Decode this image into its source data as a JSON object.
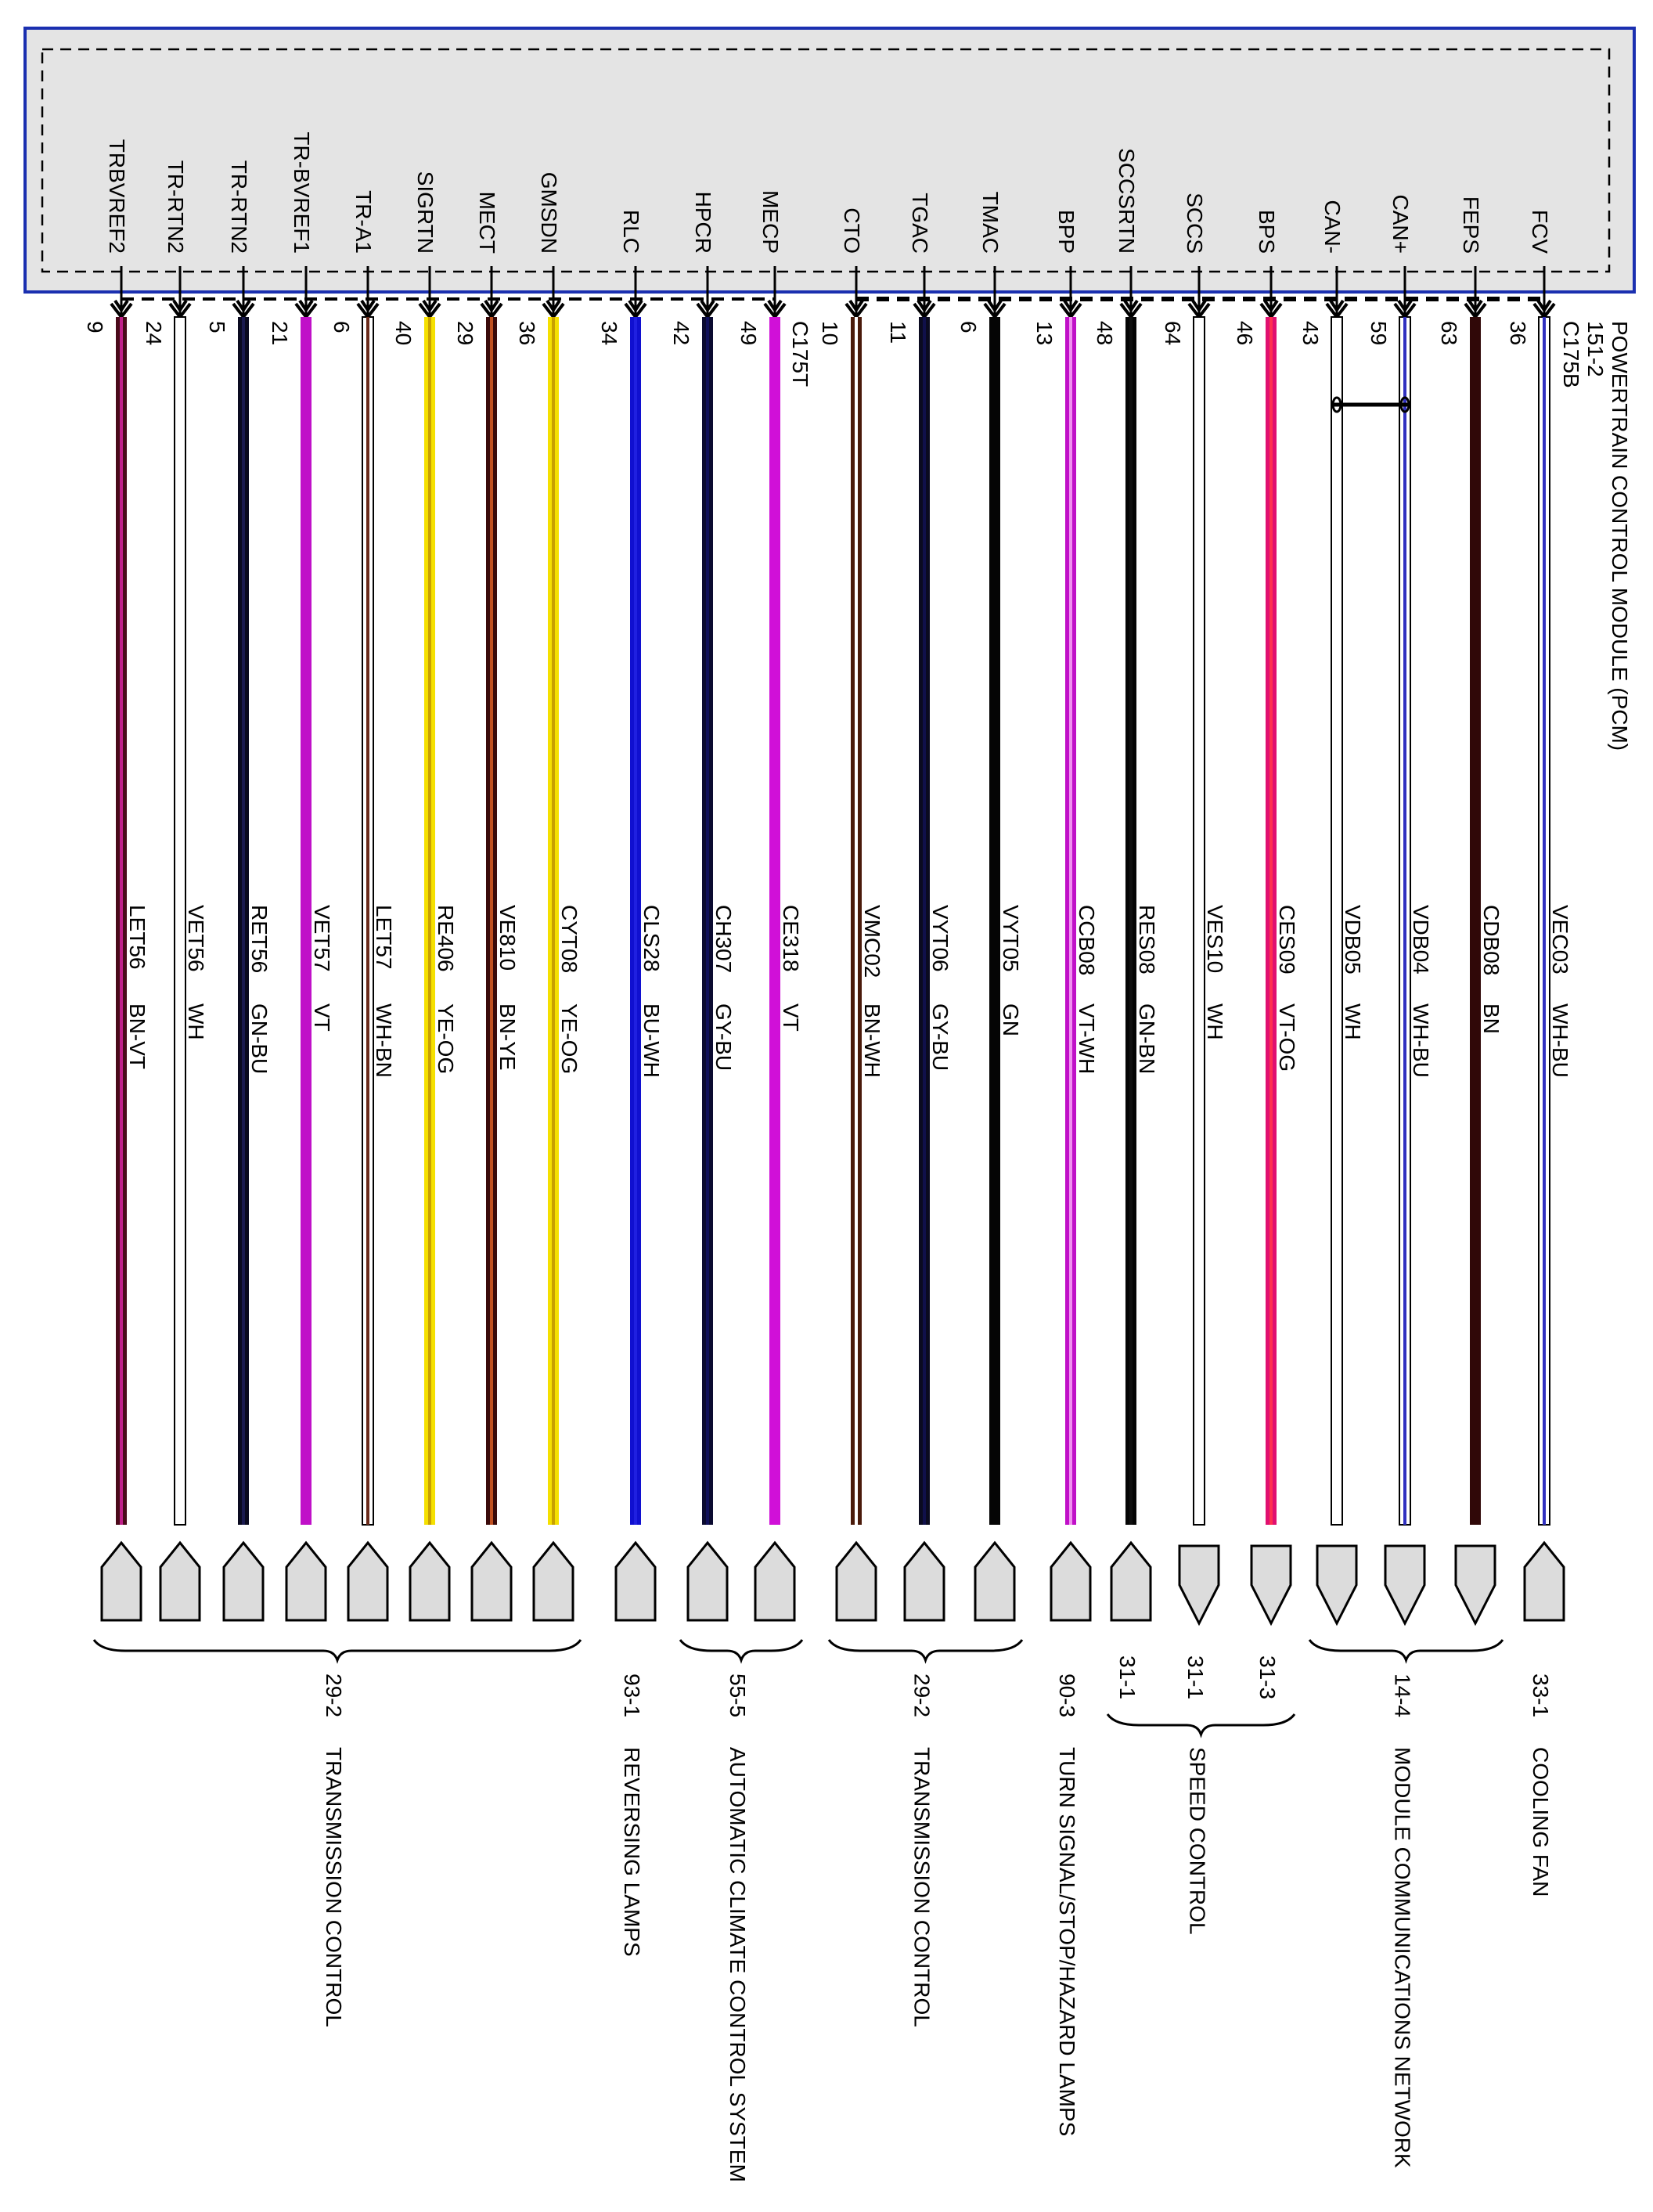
{
  "module": {
    "title": "POWERTRAIN CONTROL MODULE (PCM)",
    "ref": "151-2",
    "connector_right": "C175B",
    "connector_left": "C175T",
    "border_color": "#1a2fb0",
    "fill_color": "#e4e4e4"
  },
  "wires": [
    {
      "name": "TRBVREF2",
      "pin": "9",
      "circuit": "LET56",
      "color": "BN-VT",
      "base": "#4a0a1a",
      "stripe": "#c0208a",
      "group": "left",
      "conn": "up"
    },
    {
      "name": "TR-RTN2",
      "pin": "24",
      "circuit": "VET56",
      "color": "WH",
      "base": "#ffffff",
      "stripe": "#ffffff",
      "group": "left",
      "conn": "up"
    },
    {
      "name": "TR-RTN2",
      "pin": "5",
      "circuit": "RET56",
      "color": "GN-BU",
      "base": "#0a0a20",
      "stripe": "#1a1a50",
      "group": "left",
      "conn": "up"
    },
    {
      "name": "TR-BVREF1",
      "pin": "21",
      "circuit": "VET57",
      "color": "VT",
      "base": "#c010c8",
      "stripe": "#c010c8",
      "group": "left",
      "conn": "up"
    },
    {
      "name": "TR-A1",
      "pin": "6",
      "circuit": "LET57",
      "color": "WH-BN",
      "base": "#ffffff",
      "stripe": "#6a2a1a",
      "group": "left",
      "conn": "up"
    },
    {
      "name": "SIGRTN",
      "pin": "40",
      "circuit": "RE406",
      "color": "YE-OG",
      "base": "#f5e000",
      "stripe": "#c8a000",
      "group": "left",
      "conn": "up"
    },
    {
      "name": "MECT",
      "pin": "29",
      "circuit": "VE810",
      "color": "BN-YE",
      "base": "#3a0a0a",
      "stripe": "#c05020",
      "group": "left",
      "conn": "up"
    },
    {
      "name": "GMSDN",
      "pin": "36",
      "circuit": "CYT08",
      "color": "YE-OG",
      "base": "#f5e000",
      "stripe": "#c8a000",
      "group": "left",
      "conn": "up"
    },
    {
      "name": "RLC",
      "pin": "34",
      "circuit": "CLS28",
      "color": "BU-WH",
      "base": "#1010d0",
      "stripe": "#2020e0",
      "group": "left",
      "conn": "up"
    },
    {
      "name": "HPCR",
      "pin": "42",
      "circuit": "CH307",
      "color": "GY-BU",
      "base": "#0a0a30",
      "stripe": "#10105a",
      "group": "left",
      "conn": "up"
    },
    {
      "name": "MECP",
      "pin": "49",
      "circuit": "CE318",
      "color": "VT",
      "base": "#d010d8",
      "stripe": "#d010d8",
      "group": "left",
      "conn": "up"
    },
    {
      "name": "CTO",
      "pin": "10",
      "circuit": "VMC02",
      "color": "BN-WH",
      "base": "#4a1a0a",
      "stripe": "#ffffff",
      "group": "right",
      "conn": "up"
    },
    {
      "name": "TGAC",
      "pin": "11",
      "circuit": "VYT06",
      "color": "GY-BU",
      "base": "#0a0a20",
      "stripe": "#10104a",
      "group": "right",
      "conn": "up"
    },
    {
      "name": "TMAC",
      "pin": "6",
      "circuit": "VYT05",
      "color": "GN",
      "base": "#050505",
      "stripe": "#050505",
      "group": "right",
      "conn": "up"
    },
    {
      "name": "BPP",
      "pin": "13",
      "circuit": "CCB08",
      "color": "VT-WH",
      "base": "#c010c8",
      "stripe": "#f090f0",
      "group": "right",
      "conn": "up"
    },
    {
      "name": "SCCSRTN",
      "pin": "48",
      "circuit": "RES08",
      "color": "GN-BN",
      "base": "#050505",
      "stripe": "#101010",
      "group": "right",
      "conn": "up"
    },
    {
      "name": "SCCS",
      "pin": "64",
      "circuit": "VES10",
      "color": "WH",
      "base": "#ffffff",
      "stripe": "#ffffff",
      "group": "right",
      "conn": "down"
    },
    {
      "name": "BPS",
      "pin": "46",
      "circuit": "CES09",
      "color": "VT-OG",
      "base": "#e01070",
      "stripe": "#ff3050",
      "group": "right",
      "conn": "down"
    },
    {
      "name": "CAN-",
      "pin": "43",
      "circuit": "VDB05",
      "color": "WH",
      "base": "#ffffff",
      "stripe": "#ffffff",
      "group": "right",
      "conn": "down"
    },
    {
      "name": "CAN+",
      "pin": "59",
      "circuit": "VDB04",
      "color": "WH-BU",
      "base": "#ffffff",
      "stripe": "#3030c0",
      "group": "right",
      "conn": "down"
    },
    {
      "name": "FEPS",
      "pin": "63",
      "circuit": "CDB08",
      "color": "BN",
      "base": "#300808",
      "stripe": "#300808",
      "group": "right",
      "conn": "down"
    },
    {
      "name": "FCV",
      "pin": "36",
      "circuit": "VEC03",
      "color": "WH-BU",
      "base": "#ffffff",
      "stripe": "#3030c0",
      "group": "right",
      "conn": "up"
    }
  ],
  "destinations": [
    {
      "refs": [
        "29-2"
      ],
      "label": "TRANSMISSION CONTROL",
      "from": 0,
      "to": 7
    },
    {
      "refs": [
        "93-1"
      ],
      "label": "REVERSING LAMPS",
      "from": 8,
      "to": 8
    },
    {
      "refs": [
        "55-5"
      ],
      "label": "AUTOMATIC CLIMATE CONTROL SYSTEM",
      "from": 9,
      "to": 10
    },
    {
      "refs": [
        "29-2"
      ],
      "label": "TRANSMISSION CONTROL",
      "from": 11,
      "to": 13
    },
    {
      "refs": [
        "90-3"
      ],
      "label": "TURN SIGNAL/STOP/HAZARD LAMPS",
      "from": 14,
      "to": 14
    },
    {
      "refs": [
        "31-1",
        "31-1",
        "31-3"
      ],
      "label": "SPEED CONTROL",
      "from": 15,
      "to": 17
    },
    {
      "refs": [
        "14-4"
      ],
      "label": "MODULE COMMUNICATIONS NETWORK",
      "from": 18,
      "to": 20
    },
    {
      "refs": [
        "33-1"
      ],
      "label": "COOLING FAN",
      "from": 21,
      "to": 21
    }
  ]
}
